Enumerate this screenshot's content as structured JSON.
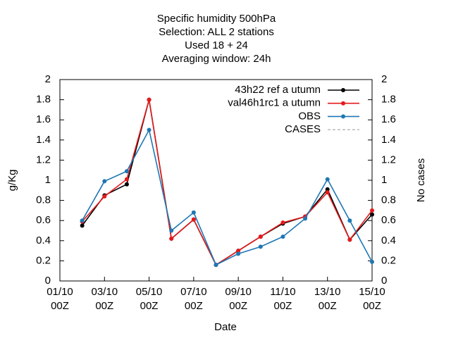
{
  "chart_data": {
    "type": "line",
    "title": [
      "Specific humidity 500hPa",
      "Selection: ALL       2 stations",
      "Used  18  + 24",
      "Averaging window: 24h"
    ],
    "xlabel": "Date",
    "ylabel": "g/Kg",
    "y2label": "No cases",
    "x": [
      2,
      3,
      4,
      5,
      6,
      7,
      8,
      9,
      10,
      11,
      12,
      13,
      14,
      15
    ],
    "xlim": [
      1,
      15
    ],
    "xticks": [
      {
        "value": 1,
        "label": "01/10\n00Z"
      },
      {
        "value": 3,
        "label": "03/10\n00Z"
      },
      {
        "value": 5,
        "label": "05/10\n00Z"
      },
      {
        "value": 7,
        "label": "07/10\n00Z"
      },
      {
        "value": 9,
        "label": "09/10\n00Z"
      },
      {
        "value": 11,
        "label": "11/10\n00Z"
      },
      {
        "value": 13,
        "label": "13/10\n00Z"
      },
      {
        "value": 15,
        "label": "15/10\n00Z"
      }
    ],
    "ylim": [
      0,
      2
    ],
    "yticks": [
      0,
      0.2,
      0.4,
      0.6,
      0.8,
      1,
      1.2,
      1.4,
      1.6,
      1.8,
      2
    ],
    "y2lim": [
      0,
      2
    ],
    "y2ticks": [
      0,
      0.2,
      0.4,
      0.6,
      0.8,
      1,
      1.2,
      1.4,
      1.6,
      1.8,
      2
    ],
    "grid": false,
    "legend": "top-right",
    "series": [
      {
        "name": "43h22 ref a utumn",
        "color": "#000000",
        "values": [
          0.55,
          0.85,
          0.96,
          1.8,
          0.42,
          0.61,
          0.16,
          0.3,
          0.44,
          0.57,
          0.64,
          0.91,
          0.41,
          0.66
        ]
      },
      {
        "name": "val46h1rc1 a utumn",
        "color": "#e41a1c",
        "values": [
          0.59,
          0.84,
          1.01,
          1.8,
          0.42,
          0.61,
          0.16,
          0.3,
          0.44,
          0.58,
          0.64,
          0.88,
          0.41,
          0.7
        ]
      },
      {
        "name": "OBS",
        "color": "#1f77b4",
        "values": [
          0.6,
          0.99,
          1.09,
          1.5,
          0.5,
          0.68,
          0.16,
          0.27,
          0.34,
          0.44,
          0.62,
          1.01,
          0.6,
          0.19
        ]
      },
      {
        "name": "CASES",
        "color": "#999999",
        "dashed": true,
        "axis": "y2",
        "values": [
          null,
          null,
          null,
          null,
          null,
          null,
          null,
          null,
          null,
          null,
          null,
          null,
          null,
          null
        ]
      }
    ]
  }
}
